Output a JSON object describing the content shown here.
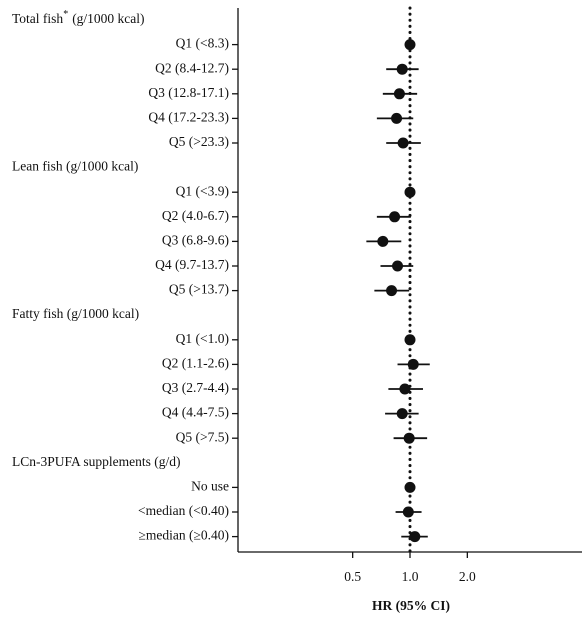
{
  "chart_data": {
    "type": "forest",
    "x_label": "HR (95% CI)",
    "xscale": "log",
    "xlim": [
      0.125,
      8
    ],
    "xticks": [
      0.5,
      {
        "value": 1,
        "label": "1.0"
      },
      {
        "value": 2,
        "label": "2.0"
      }
    ],
    "ref_line": 1,
    "color": "#111111",
    "groups": [
      {
        "name": "Total fish",
        "marker": "*",
        "unit": "(g/1000 kcal)",
        "rows": [
          {
            "label": "Q1 (<8.3)",
            "hr": 1,
            "lower": null,
            "upper": null
          },
          {
            "label": "Q2 (8.4-12.7)",
            "hr": 0.91,
            "lower": 0.75,
            "upper": 1.11
          },
          {
            "label": "Q3 (12.8-17.1)",
            "hr": 0.88,
            "lower": 0.72,
            "upper": 1.09
          },
          {
            "label": "Q4 (17.2-23.3)",
            "hr": 0.85,
            "lower": 0.67,
            "upper": 1.04
          },
          {
            "label": "Q5 (>23.3)",
            "hr": 0.92,
            "lower": 0.75,
            "upper": 1.14
          }
        ]
      },
      {
        "name": "Lean fish (g/1000 kcal)",
        "rows": [
          {
            "label": "Q1 (<3.9)",
            "hr": 1,
            "lower": null,
            "upper": null
          },
          {
            "label": "Q2 (4.0-6.7)",
            "hr": 0.83,
            "lower": 0.67,
            "upper": 1.01
          },
          {
            "label": "Q3 (6.8-9.6)",
            "hr": 0.72,
            "lower": 0.59,
            "upper": 0.9
          },
          {
            "label": "Q4 (9.7-13.7)",
            "hr": 0.86,
            "lower": 0.7,
            "upper": 1.04
          },
          {
            "label": "Q5 (>13.7)",
            "hr": 0.8,
            "lower": 0.65,
            "upper": 0.99
          }
        ]
      },
      {
        "name": "Fatty fish (g/1000 kcal)",
        "rows": [
          {
            "label": "Q1 (<1.0)",
            "hr": 1,
            "lower": null,
            "upper": null
          },
          {
            "label": "Q2 (1.1-2.6)",
            "hr": 1.04,
            "lower": 0.86,
            "upper": 1.27
          },
          {
            "label": "Q3 (2.7-4.4)",
            "hr": 0.94,
            "lower": 0.77,
            "upper": 1.17
          },
          {
            "label": "Q4 (4.4-7.5)",
            "hr": 0.91,
            "lower": 0.74,
            "upper": 1.11
          },
          {
            "label": "Q5 (>7.5)",
            "hr": 0.99,
            "lower": 0.82,
            "upper": 1.23
          }
        ]
      },
      {
        "name": "LCn-3PUFA supplements (g/d)",
        "rows": [
          {
            "label": "No use",
            "hr": 1,
            "lower": null,
            "upper": null
          },
          {
            "label": "<median (<0.40)",
            "hr": 0.98,
            "lower": 0.84,
            "upper": 1.15
          },
          {
            "label": "≥median (≥0.40)",
            "hr": 1.06,
            "lower": 0.9,
            "upper": 1.24
          }
        ]
      }
    ]
  }
}
